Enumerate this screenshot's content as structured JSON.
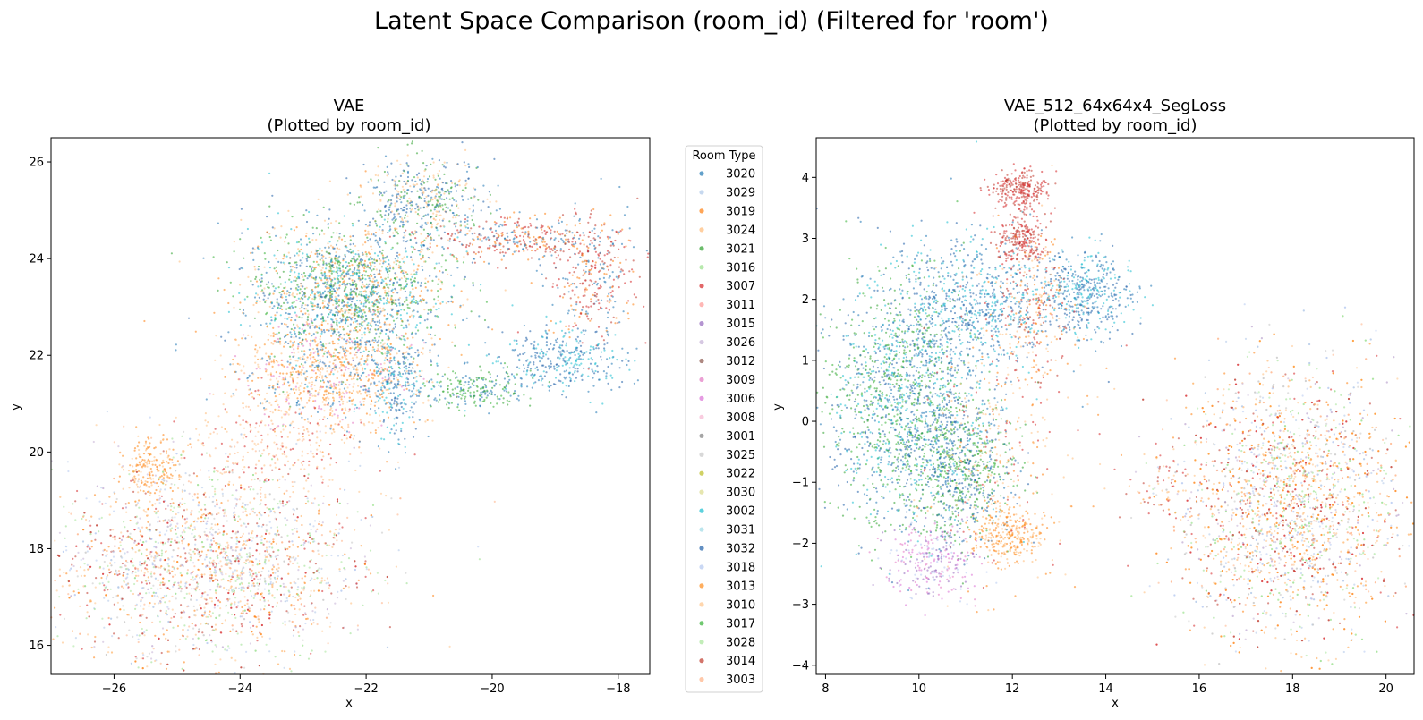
{
  "chart_data": [
    {
      "type": "scatter",
      "suptitle": "Latent Space Comparison (room_id) (Filtered for 'room')",
      "title": "VAE",
      "subtitle": "(Plotted by room_id)",
      "xlabel": "x",
      "ylabel": "y",
      "xlim": [
        -27.0,
        -17.5
      ],
      "ylim": [
        15.4,
        26.5
      ],
      "xticks": [
        -26,
        -24,
        -22,
        -20,
        -18
      ],
      "yticks": [
        16,
        18,
        20,
        22,
        24,
        26
      ],
      "xtick_labels": [
        "−26",
        "−24",
        "−22",
        "−20",
        "−18"
      ],
      "ytick_labels": [
        "16",
        "18",
        "20",
        "22",
        "24",
        "26"
      ],
      "grid": false,
      "clusters": [
        {
          "x": -22.3,
          "y": 23.3,
          "sx": 0.8,
          "sy": 0.7,
          "n": 1900,
          "g": [
            "3020",
            "3032",
            "3002",
            "3021",
            "3017",
            "3019",
            "3024"
          ]
        },
        {
          "x": -21.1,
          "y": 25.2,
          "sx": 0.5,
          "sy": 0.45,
          "n": 500,
          "g": [
            "3020",
            "3032",
            "3024",
            "3021"
          ]
        },
        {
          "x": -22.6,
          "y": 21.6,
          "sx": 0.7,
          "sy": 0.55,
          "n": 900,
          "g": [
            "3019",
            "3013",
            "3024",
            "3010",
            "3020",
            "3009"
          ]
        },
        {
          "x": -19.5,
          "y": 24.4,
          "sx": 0.8,
          "sy": 0.25,
          "n": 400,
          "g": [
            "3007",
            "3014",
            "3020",
            "3019"
          ]
        },
        {
          "x": -18.4,
          "y": 23.5,
          "sx": 0.35,
          "sy": 0.6,
          "n": 300,
          "g": [
            "3007",
            "3014",
            "3020",
            "3019"
          ]
        },
        {
          "x": -18.9,
          "y": 21.9,
          "sx": 0.5,
          "sy": 0.35,
          "n": 350,
          "g": [
            "3020",
            "3032",
            "3002"
          ]
        },
        {
          "x": -20.3,
          "y": 21.3,
          "sx": 0.4,
          "sy": 0.2,
          "n": 220,
          "g": [
            "3021",
            "3017",
            "3020"
          ]
        },
        {
          "x": -21.5,
          "y": 21.4,
          "sx": 0.25,
          "sy": 0.6,
          "n": 260,
          "g": [
            "3020",
            "3032",
            "3002"
          ]
        },
        {
          "x": -24.5,
          "y": 17.7,
          "sx": 1.2,
          "sy": 1.0,
          "n": 2600,
          "g": [
            "3024",
            "3003",
            "3010",
            "3007",
            "3014",
            "3019",
            "3029",
            "3026",
            "3018",
            "3016",
            "3028",
            "3025"
          ]
        },
        {
          "x": -25.4,
          "y": 19.6,
          "sx": 0.25,
          "sy": 0.35,
          "n": 200,
          "g": [
            "3019",
            "3024",
            "3013"
          ]
        },
        {
          "x": -23.5,
          "y": 20.2,
          "sx": 0.8,
          "sy": 0.6,
          "n": 300,
          "g": [
            "3024",
            "3010",
            "3003",
            "3007"
          ]
        }
      ]
    },
    {
      "type": "scatter",
      "title": "VAE_512_64x64x4_SegLoss",
      "subtitle": "(Plotted by room_id)",
      "xlabel": "x",
      "ylabel": "y",
      "xlim": [
        7.8,
        20.6
      ],
      "ylim": [
        -4.15,
        4.65
      ],
      "xticks": [
        8,
        10,
        12,
        14,
        16,
        18,
        20
      ],
      "yticks": [
        -4,
        -3,
        -2,
        -1,
        0,
        1,
        2,
        3,
        4
      ],
      "xtick_labels": [
        "8",
        "10",
        "12",
        "14",
        "16",
        "18",
        "20"
      ],
      "ytick_labels": [
        "−4",
        "−3",
        "−2",
        "−1",
        "0",
        "1",
        "2",
        "3",
        "4"
      ],
      "grid": false,
      "clusters": [
        {
          "x": 9.7,
          "y": 0.3,
          "sx": 0.8,
          "sy": 1.0,
          "n": 1700,
          "g": [
            "3020",
            "3032",
            "3002",
            "3021",
            "3017"
          ]
        },
        {
          "x": 10.9,
          "y": -0.8,
          "sx": 0.55,
          "sy": 0.55,
          "n": 700,
          "g": [
            "3021",
            "3017",
            "3020",
            "3032"
          ]
        },
        {
          "x": 11.2,
          "y": 1.9,
          "sx": 0.9,
          "sy": 0.55,
          "n": 700,
          "g": [
            "3020",
            "3032",
            "3002"
          ]
        },
        {
          "x": 13.6,
          "y": 2.1,
          "sx": 0.5,
          "sy": 0.35,
          "n": 450,
          "g": [
            "3020",
            "3032",
            "3002"
          ]
        },
        {
          "x": 12.2,
          "y": 3.8,
          "sx": 0.3,
          "sy": 0.15,
          "n": 250,
          "g": [
            "3007",
            "3014"
          ]
        },
        {
          "x": 12.2,
          "y": 3.0,
          "sx": 0.25,
          "sy": 0.2,
          "n": 220,
          "g": [
            "3007",
            "3014"
          ]
        },
        {
          "x": 12.5,
          "y": 1.9,
          "sx": 0.4,
          "sy": 0.6,
          "n": 240,
          "g": [
            "3007",
            "3014",
            "3024",
            "3019"
          ]
        },
        {
          "x": 11.9,
          "y": -1.85,
          "sx": 0.4,
          "sy": 0.25,
          "n": 300,
          "g": [
            "3019",
            "3013",
            "3024"
          ]
        },
        {
          "x": 10.3,
          "y": -2.3,
          "sx": 0.5,
          "sy": 0.3,
          "n": 280,
          "g": [
            "3015",
            "3006",
            "3009",
            "3018"
          ]
        },
        {
          "x": 11.8,
          "y": -0.2,
          "sx": 0.8,
          "sy": 1.2,
          "n": 300,
          "g": [
            "3024",
            "3010",
            "3007",
            "3019"
          ]
        },
        {
          "x": 17.9,
          "y": -1.4,
          "sx": 1.2,
          "sy": 1.1,
          "n": 3200,
          "g": [
            "3024",
            "3003",
            "3010",
            "3007",
            "3014",
            "3019",
            "3013",
            "3029",
            "3026",
            "3018",
            "3016",
            "3028",
            "3025"
          ]
        },
        {
          "x": 15.3,
          "y": -1.0,
          "sx": 0.5,
          "sy": 0.35,
          "n": 60,
          "g": [
            "3007",
            "3024",
            "3014"
          ]
        }
      ]
    }
  ],
  "legend": {
    "title": "Room Type",
    "placement": "between the two panels",
    "entries": [
      {
        "label": "3020",
        "color": "#1f77b4"
      },
      {
        "label": "3029",
        "color": "#aec7e8"
      },
      {
        "label": "3019",
        "color": "#ff7f0e"
      },
      {
        "label": "3024",
        "color": "#ffbb78"
      },
      {
        "label": "3021",
        "color": "#2ca02c"
      },
      {
        "label": "3016",
        "color": "#98df8a"
      },
      {
        "label": "3007",
        "color": "#d62728"
      },
      {
        "label": "3011",
        "color": "#ff9896"
      },
      {
        "label": "3015",
        "color": "#9467bd"
      },
      {
        "label": "3026",
        "color": "#c5b0d5"
      },
      {
        "label": "3012",
        "color": "#8c564b"
      },
      {
        "label": "3009",
        "color": "#e377c2"
      },
      {
        "label": "3006",
        "color": "#da70d6"
      },
      {
        "label": "3008",
        "color": "#f7b6d2"
      },
      {
        "label": "3001",
        "color": "#7f7f7f"
      },
      {
        "label": "3025",
        "color": "#c7c7c7"
      },
      {
        "label": "3022",
        "color": "#bcbd22"
      },
      {
        "label": "3030",
        "color": "#dbdb8d"
      },
      {
        "label": "3002",
        "color": "#17becf"
      },
      {
        "label": "3031",
        "color": "#9edae5"
      },
      {
        "label": "3032",
        "color": "#1f5fa8"
      },
      {
        "label": "3018",
        "color": "#b4c8f0"
      },
      {
        "label": "3013",
        "color": "#ff8c1a"
      },
      {
        "label": "3010",
        "color": "#ffc48a"
      },
      {
        "label": "3017",
        "color": "#33b033"
      },
      {
        "label": "3028",
        "color": "#a8e69a"
      },
      {
        "label": "3014",
        "color": "#c0392b"
      },
      {
        "label": "3003",
        "color": "#ffb085"
      }
    ]
  }
}
